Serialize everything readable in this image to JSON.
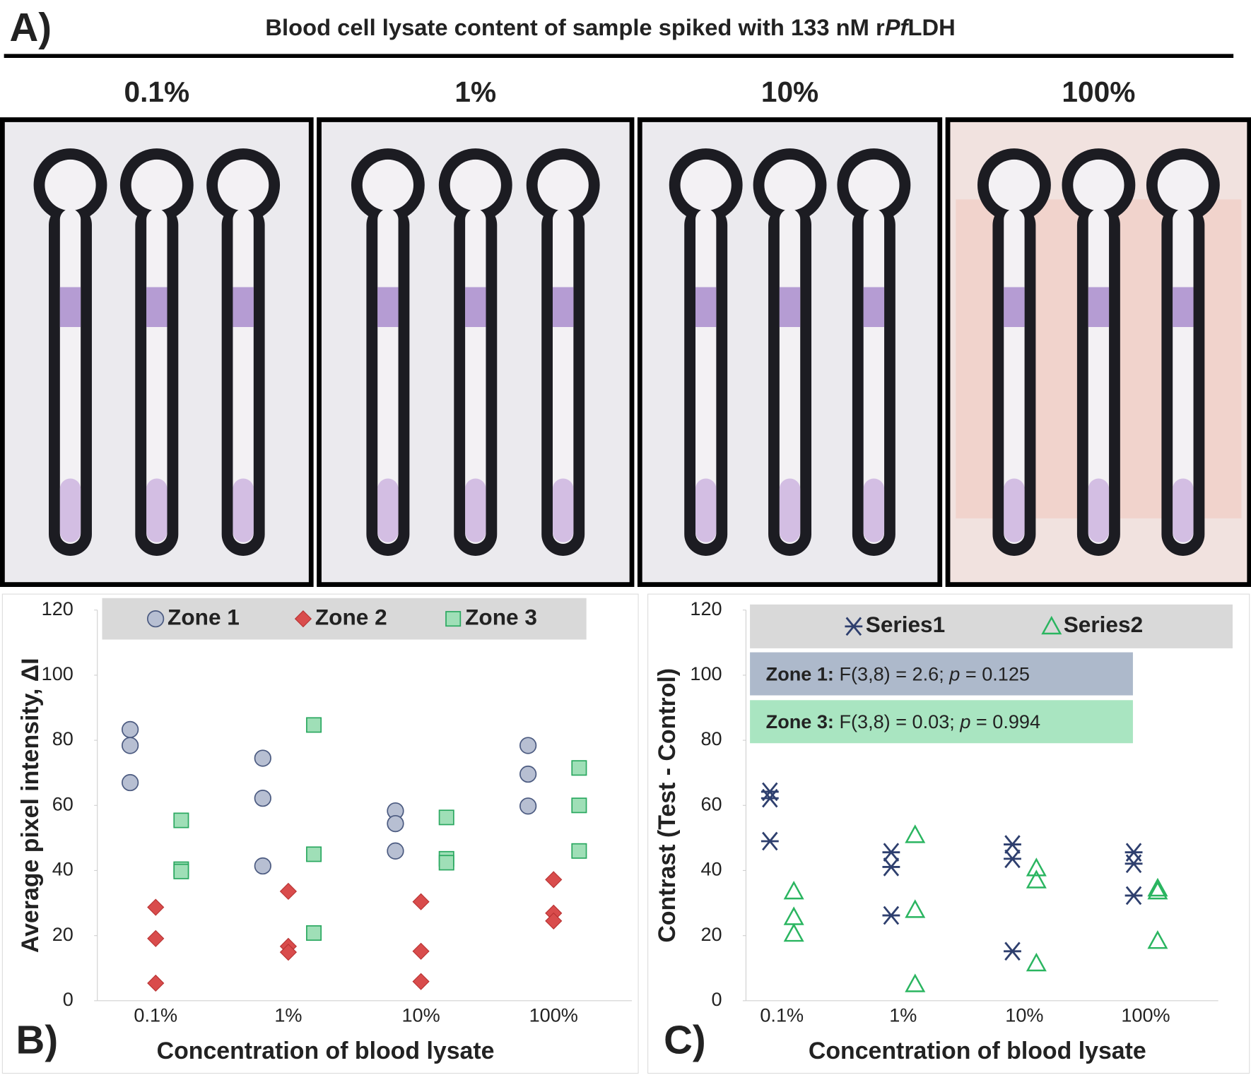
{
  "header": {
    "panel_label": "A)",
    "title_parts": [
      "Blood cell lysate content of sample spiked with 133 nM r",
      "Pf",
      "LDH"
    ]
  },
  "photos": {
    "labels": [
      "0.1%",
      "1%",
      "10%",
      "100%"
    ]
  },
  "chart_data": [
    {
      "type": "scatter",
      "panel_label": "B)",
      "y_label": "Average pixel intensity, ΔI",
      "x_label": "Concentration of blood lysate",
      "categories": [
        "0.1%",
        "1%",
        "10%",
        "100%"
      ],
      "series": [
        {
          "name": "Zone 1",
          "marker": "circle",
          "color": "#b7bfd2",
          "edge_color": "#4b5a80",
          "values": [
            [
              83.3,
              78.4,
              67
            ],
            [
              74.5,
              62.2,
              41.4
            ],
            [
              58.3,
              54.4,
              46
            ],
            [
              78.4,
              69.6,
              59.8
            ]
          ]
        },
        {
          "name": "Zone 2",
          "marker": "diamond",
          "color": "#d94c4c",
          "edge_color": "#b83232",
          "values": [
            [
              28.7,
              19.1,
              5.4
            ],
            [
              33.6,
              16.7,
              14.9
            ],
            [
              30.4,
              15.2,
              5.9
            ],
            [
              37.2,
              26.9,
              24.5
            ]
          ]
        },
        {
          "name": "Zone 3",
          "marker": "square",
          "color": "#9fdfb7",
          "edge_color": "#2aa860",
          "values": [
            [
              55.4,
              40.4,
              39.7
            ],
            [
              84.7,
              45,
              20.8
            ],
            [
              56.3,
              43.6,
              42.4
            ],
            [
              71.5,
              60,
              46
            ]
          ]
        }
      ],
      "ylim": [
        0,
        120
      ],
      "yticks": [
        0,
        20,
        40,
        60,
        80,
        100,
        120
      ],
      "legend_position": "top"
    },
    {
      "type": "scatter",
      "panel_label": "C)",
      "y_label": "Contrast (Test - Control)",
      "x_label": "Concentration of blood lysate",
      "categories": [
        "0.1%",
        "1%",
        "10%",
        "100%"
      ],
      "series": [
        {
          "name": "Series1",
          "marker": "asterisk",
          "color": "#2e3f6e",
          "values": [
            [
              64.2,
              62.2,
              49
            ],
            [
              45.6,
              41.1,
              26.2
            ],
            [
              48,
              43.6,
              15.2
            ],
            [
              45.6,
              42.1,
              32.3
            ]
          ]
        },
        {
          "name": "Series2",
          "marker": "triangle",
          "color": "#2ab560",
          "values": [
            [
              33.6,
              25.7,
              20.6
            ],
            [
              50.9,
              27.9,
              5.1
            ],
            [
              40.7,
              37,
              11.5
            ],
            [
              34.5,
              33.6,
              18.4
            ]
          ]
        }
      ],
      "annotations": [
        {
          "label": "Zone 1:",
          "stat": "F(3,8) = 2.6;",
          "p_symbol": "p",
          "p_value": "= 0.125",
          "color": "#adb9cb"
        },
        {
          "label": "Zone 3:",
          "stat": "F(3,8) = 0.03;",
          "p_symbol": "p",
          "p_value": "= 0.994",
          "color": "#a9e5c1"
        }
      ],
      "ylim": [
        0,
        120
      ],
      "yticks": [
        0,
        20,
        40,
        60,
        80,
        100,
        120
      ],
      "legend_position": "top"
    }
  ]
}
